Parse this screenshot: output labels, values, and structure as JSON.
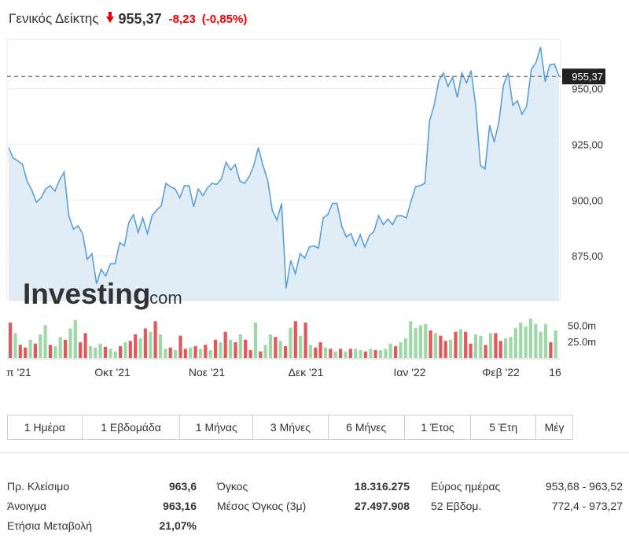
{
  "header": {
    "name": "Γενικός Δείκτης",
    "price": "955,37",
    "change": "-8,23",
    "change_pct": "(-0,85%)",
    "down_color": "#e00000"
  },
  "chart_data": {
    "type": "area",
    "title": "",
    "ylim": [
      855,
      972
    ],
    "y_ticks": [
      "950,00",
      "925,00",
      "900,00",
      "875,00"
    ],
    "y_tick_values": [
      950,
      925,
      900,
      875
    ],
    "x_tick_labels": [
      "π '21",
      "Οκτ '21",
      "Νοε '21",
      "Δεκ '21",
      "Ιαν '22",
      "Φεβ '22",
      "16"
    ],
    "last_price_label": "955,37",
    "last_price": 955.37,
    "values": [
      923.5,
      918.8,
      917.5,
      916.0,
      908.5,
      904.5,
      899.0,
      901.0,
      905.0,
      906.5,
      904.0,
      909.0,
      912.5,
      893.0,
      887.0,
      888.5,
      885.0,
      873.5,
      876.0,
      862.5,
      869.0,
      866.0,
      871.5,
      871.5,
      881.0,
      879.5,
      890.0,
      893.5,
      885.5,
      892.0,
      885.0,
      893.0,
      895.5,
      897.5,
      907.5,
      906.0,
      905.0,
      901.0,
      906.5,
      906.5,
      897.0,
      905.0,
      902.0,
      905.5,
      907.5,
      907.0,
      909.5,
      917.0,
      913.5,
      916.0,
      908.5,
      907.5,
      910.5,
      915.5,
      923.5,
      915.5,
      909.0,
      895.5,
      891.0,
      898.5,
      860.5,
      873.0,
      867.0,
      876.0,
      874.0,
      879.0,
      879.5,
      878.5,
      892.0,
      893.5,
      898.5,
      898.5,
      888.5,
      883.5,
      885.0,
      879.5,
      884.5,
      879.0,
      884.0,
      886.0,
      893.0,
      889.0,
      891.5,
      889.0,
      893.0,
      893.0,
      892.0,
      899.5,
      906.0,
      906.5,
      907.5,
      935.5,
      942.5,
      953.5,
      957.0,
      951.0,
      955.0,
      946.0,
      957.0,
      952.5,
      958.0,
      942.0,
      915.5,
      914.0,
      933.5,
      926.0,
      935.0,
      951.5,
      957.0,
      942.5,
      944.5,
      938.5,
      942.0,
      958.5,
      961.5,
      968.5,
      953.0,
      960.5,
      961.0,
      955.5
    ],
    "volume_ticks": [
      "50.0m",
      "25.0m"
    ],
    "volume_tick_values": [
      50,
      25
    ],
    "volume_max": 72,
    "volumes": [
      {
        "v": 54,
        "up": false
      },
      {
        "v": 38,
        "up": true
      },
      {
        "v": 20,
        "up": false
      },
      {
        "v": 16,
        "up": false
      },
      {
        "v": 28,
        "up": true
      },
      {
        "v": 22,
        "up": false
      },
      {
        "v": 36,
        "up": true
      },
      {
        "v": 50,
        "up": true
      },
      {
        "v": 20,
        "up": false
      },
      {
        "v": 18,
        "up": true
      },
      {
        "v": 32,
        "up": true
      },
      {
        "v": 28,
        "up": false
      },
      {
        "v": 45,
        "up": true
      },
      {
        "v": 58,
        "up": true
      },
      {
        "v": 24,
        "up": false
      },
      {
        "v": 38,
        "up": false
      },
      {
        "v": 18,
        "up": true
      },
      {
        "v": 16,
        "up": true
      },
      {
        "v": 22,
        "up": true
      },
      {
        "v": 17,
        "up": false
      },
      {
        "v": 14,
        "up": true
      },
      {
        "v": 10,
        "up": true
      },
      {
        "v": 18,
        "up": false
      },
      {
        "v": 24,
        "up": true
      },
      {
        "v": 26,
        "up": false
      },
      {
        "v": 36,
        "up": false
      },
      {
        "v": 30,
        "up": true
      },
      {
        "v": 45,
        "up": false
      },
      {
        "v": 40,
        "up": true
      },
      {
        "v": 56,
        "up": false
      },
      {
        "v": 36,
        "up": true
      },
      {
        "v": 14,
        "up": true
      },
      {
        "v": 16,
        "up": false
      },
      {
        "v": 12,
        "up": true
      },
      {
        "v": 34,
        "up": false
      },
      {
        "v": 14,
        "up": false
      },
      {
        "v": 16,
        "up": true
      },
      {
        "v": 18,
        "up": false
      },
      {
        "v": 14,
        "up": true
      },
      {
        "v": 20,
        "up": false
      },
      {
        "v": 12,
        "up": true
      },
      {
        "v": 28,
        "up": false
      },
      {
        "v": 24,
        "up": true
      },
      {
        "v": 40,
        "up": false
      },
      {
        "v": 28,
        "up": true
      },
      {
        "v": 24,
        "up": false
      },
      {
        "v": 36,
        "up": true
      },
      {
        "v": 28,
        "up": false
      },
      {
        "v": 12,
        "up": false
      },
      {
        "v": 54,
        "up": true
      },
      {
        "v": 10,
        "up": false
      },
      {
        "v": 20,
        "up": true
      },
      {
        "v": 36,
        "up": true
      },
      {
        "v": 32,
        "up": false
      },
      {
        "v": 26,
        "up": true
      },
      {
        "v": 18,
        "up": false
      },
      {
        "v": 46,
        "up": true
      },
      {
        "v": 56,
        "up": false
      },
      {
        "v": 34,
        "up": true
      },
      {
        "v": 54,
        "up": false
      },
      {
        "v": 20,
        "up": true
      },
      {
        "v": 16,
        "up": false
      },
      {
        "v": 24,
        "up": false
      },
      {
        "v": 16,
        "up": true
      },
      {
        "v": 14,
        "up": false
      },
      {
        "v": 10,
        "up": true
      },
      {
        "v": 14,
        "up": false
      },
      {
        "v": 10,
        "up": true
      },
      {
        "v": 14,
        "up": false
      },
      {
        "v": 14,
        "up": true
      },
      {
        "v": 12,
        "up": true
      },
      {
        "v": 10,
        "up": false
      },
      {
        "v": 14,
        "up": true
      },
      {
        "v": 12,
        "up": false
      },
      {
        "v": 12,
        "up": true
      },
      {
        "v": 14,
        "up": true
      },
      {
        "v": 22,
        "up": true
      },
      {
        "v": 18,
        "up": false
      },
      {
        "v": 24,
        "up": true
      },
      {
        "v": 30,
        "up": true
      },
      {
        "v": 56,
        "up": true
      },
      {
        "v": 46,
        "up": true
      },
      {
        "v": 50,
        "up": true
      },
      {
        "v": 52,
        "up": true
      },
      {
        "v": 42,
        "up": false
      },
      {
        "v": 38,
        "up": true
      },
      {
        "v": 34,
        "up": false
      },
      {
        "v": 26,
        "up": false
      },
      {
        "v": 28,
        "up": true
      },
      {
        "v": 40,
        "up": false
      },
      {
        "v": 44,
        "up": true
      },
      {
        "v": 40,
        "up": false
      },
      {
        "v": 22,
        "up": false
      },
      {
        "v": 36,
        "up": true
      },
      {
        "v": 34,
        "up": true
      },
      {
        "v": 20,
        "up": false
      },
      {
        "v": 38,
        "up": true
      },
      {
        "v": 38,
        "up": false
      },
      {
        "v": 26,
        "up": false
      },
      {
        "v": 30,
        "up": true
      },
      {
        "v": 32,
        "up": true
      },
      {
        "v": 46,
        "up": true
      },
      {
        "v": 54,
        "up": true
      },
      {
        "v": 48,
        "up": true
      },
      {
        "v": 60,
        "up": true
      },
      {
        "v": 52,
        "up": true
      },
      {
        "v": 40,
        "up": true
      },
      {
        "v": 52,
        "up": true
      },
      {
        "v": 24,
        "up": false
      },
      {
        "v": 42,
        "up": true
      }
    ],
    "colors": {
      "line": "#5b9fd8",
      "fill": "#dbe9f5",
      "up": "#9fd7a8",
      "down": "#e1585a",
      "dashed": "#777777",
      "price_box": "#222222"
    }
  },
  "watermark": {
    "text": "Investing",
    "suffix": ".com"
  },
  "range_tabs": [
    "1 Ημέρα",
    "1 Εβδομάδα",
    "1 Μήνας",
    "3 Μήνες",
    "6 Μήνες",
    "1 Έτος",
    "5 Έτη",
    "Μέγ"
  ],
  "stats": {
    "col1": [
      {
        "label": "Πρ. Κλείσιμο",
        "value": "963,6"
      },
      {
        "label": "Άνοιγμα",
        "value": "963,16"
      },
      {
        "label": "Ετήσια Μεταβολή",
        "value": "21,07%"
      }
    ],
    "col2": [
      {
        "label": "Όγκος",
        "value": "18.316.275"
      },
      {
        "label": "Μέσος Όγκος (3μ)",
        "value": "27.497.908"
      }
    ],
    "col3": [
      {
        "label": "Εύρος ημέρας",
        "value": "953,68 - 963,52"
      },
      {
        "label": "52 Εβδομ.",
        "value": "772,4 - 973,27"
      }
    ]
  }
}
